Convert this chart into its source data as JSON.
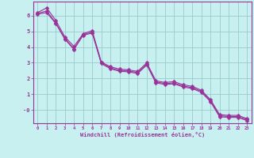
{
  "xlabel": "Windchill (Refroidissement éolien,°C)",
  "background_color": "#c8f0f0",
  "line_color": "#993399",
  "grid_color": "#99cccc",
  "xlim": [
    -0.5,
    23.5
  ],
  "ylim": [
    -0.85,
    6.9
  ],
  "xticks": [
    0,
    1,
    2,
    3,
    4,
    5,
    6,
    7,
    8,
    9,
    10,
    11,
    12,
    13,
    14,
    15,
    16,
    17,
    18,
    19,
    20,
    21,
    22,
    23
  ],
  "yticks": [
    0,
    1,
    2,
    3,
    4,
    5,
    6
  ],
  "ytick_labels": [
    "-0",
    "1",
    "2",
    "3",
    "4",
    "5",
    "6"
  ],
  "series1_y": [
    6.2,
    6.5,
    5.7,
    4.65,
    4.05,
    4.85,
    5.05,
    3.05,
    2.75,
    2.6,
    2.55,
    2.45,
    3.0,
    1.85,
    1.75,
    1.8,
    1.6,
    1.5,
    1.25,
    0.65,
    -0.3,
    -0.35,
    -0.35,
    -0.55
  ],
  "series2_y": [
    6.15,
    6.3,
    5.55,
    4.55,
    3.9,
    4.8,
    4.95,
    3.0,
    2.68,
    2.52,
    2.48,
    2.38,
    2.92,
    1.78,
    1.68,
    1.72,
    1.52,
    1.42,
    1.18,
    0.58,
    -0.38,
    -0.42,
    -0.42,
    -0.62
  ],
  "series3_y": [
    6.1,
    6.2,
    5.5,
    4.5,
    3.85,
    4.75,
    4.9,
    2.95,
    2.62,
    2.46,
    2.42,
    2.32,
    2.86,
    1.72,
    1.62,
    1.66,
    1.46,
    1.36,
    1.12,
    0.52,
    -0.44,
    -0.48,
    -0.48,
    -0.68
  ],
  "markersize": 2.5,
  "linewidth": 0.8
}
